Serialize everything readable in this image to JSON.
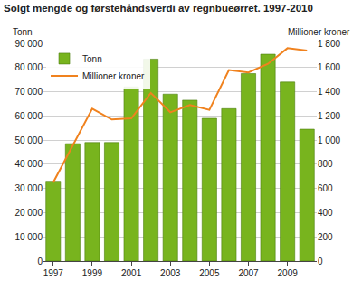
{
  "chart_data": {
    "type": "bar",
    "title": "Solgt mengde og førstehåndsverdi av regnbueørret. 1997-2010",
    "ylabel": "Tonn",
    "y2label": "Millioner kroner",
    "x": [
      1997,
      1998,
      1999,
      2000,
      2001,
      2002,
      2003,
      2004,
      2005,
      2006,
      2007,
      2008,
      2009,
      2010
    ],
    "xlim": [
      1996.5,
      2010.5
    ],
    "xticks": [
      1997,
      1999,
      2001,
      2003,
      2005,
      2007,
      2009
    ],
    "series": [
      {
        "name": "Tonn",
        "type": "bar",
        "color": "#78b41e",
        "values": [
          33000,
          48500,
          49000,
          49000,
          72000,
          83500,
          69000,
          66500,
          59000,
          63000,
          77500,
          85500,
          74000,
          54500
        ]
      },
      {
        "name": "Millioner kroner",
        "type": "line",
        "axis": "y2",
        "color": "#f0821e",
        "values": [
          650,
          950,
          1260,
          1170,
          1180,
          1390,
          1230,
          1290,
          1250,
          1580,
          1560,
          1630,
          1760,
          1740
        ]
      }
    ],
    "ylim": [
      0,
      90000
    ],
    "yticks": [
      0,
      {
        "value": 10000,
        "label": "10 000"
      },
      {
        "value": 20000,
        "label": "20 000"
      },
      {
        "value": 30000,
        "label": "30 000"
      },
      {
        "value": 40000,
        "label": "40 000"
      },
      {
        "value": 50000,
        "label": "50 000"
      },
      {
        "value": 60000,
        "label": "60 000"
      },
      {
        "value": 70000,
        "label": "70 000"
      },
      {
        "value": 80000,
        "label": "80 000"
      },
      {
        "value": 90000,
        "label": "90 000"
      }
    ],
    "y2lim": [
      0,
      1800
    ],
    "y2ticks": [
      0,
      200,
      400,
      600,
      800,
      {
        "value": 1000,
        "label": "1 000"
      },
      {
        "value": 1200,
        "label": "1 200"
      },
      {
        "value": 1400,
        "label": "1 400"
      },
      {
        "value": 1600,
        "label": "1 600"
      },
      {
        "value": 1800,
        "label": "1 800"
      }
    ],
    "grid": true,
    "legend": "top left"
  }
}
